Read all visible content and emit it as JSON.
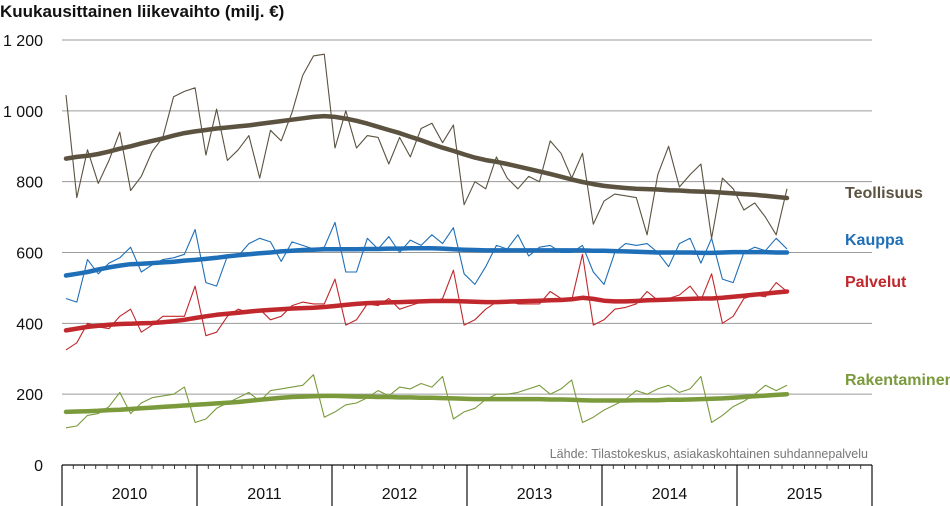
{
  "chart_data": {
    "type": "line",
    "title": "Kuukausittainen liikevaihto (milj. €)",
    "source": "Lähde: Tilastokeskus, asiakaskohtainen suhdannepalvelu",
    "ylim": [
      0,
      1200
    ],
    "yticks": [
      {
        "value": 0,
        "label": "0"
      },
      {
        "value": 200,
        "label": "200"
      },
      {
        "value": 400,
        "label": "400"
      },
      {
        "value": 600,
        "label": "600"
      },
      {
        "value": 800,
        "label": "800"
      },
      {
        "value": 1000,
        "label": "1 000"
      },
      {
        "value": 1200,
        "label": "1 200"
      }
    ],
    "grid": true,
    "x_unit": "month index from January 2010",
    "years": [
      "2010",
      "2011",
      "2012",
      "2013",
      "2014",
      "2015"
    ],
    "year_span_months": [
      12,
      12,
      12,
      12,
      12,
      12
    ],
    "series": [
      {
        "name": "Teollisuus",
        "color": "#5b5240",
        "raw": [
          1045,
          755,
          890,
          795,
          860,
          940,
          775,
          815,
          885,
          925,
          1040,
          1055,
          1065,
          875,
          1005,
          860,
          890,
          930,
          810,
          945,
          915,
          995,
          1100,
          1155,
          1160,
          895,
          1000,
          895,
          930,
          925,
          850,
          925,
          870,
          950,
          965,
          910,
          960,
          735,
          800,
          780,
          870,
          810,
          780,
          815,
          800,
          915,
          880,
          810,
          880,
          680,
          745,
          765,
          760,
          755,
          650,
          820,
          900,
          785,
          820,
          850,
          640,
          810,
          780,
          720,
          740,
          700,
          650,
          780
        ],
        "trend": [
          865,
          870,
          873,
          878,
          885,
          893,
          900,
          908,
          915,
          922,
          930,
          937,
          942,
          946,
          950,
          953,
          956,
          959,
          963,
          967,
          971,
          975,
          979,
          983,
          985,
          983,
          978,
          972,
          964,
          955,
          946,
          937,
          927,
          917,
          906,
          896,
          887,
          877,
          868,
          861,
          856,
          850,
          843,
          836,
          829,
          822,
          814,
          806,
          799,
          793,
          788,
          785,
          782,
          780,
          779,
          778,
          776,
          775,
          773,
          772,
          771,
          769,
          767,
          765,
          763,
          760,
          757,
          754
        ]
      },
      {
        "name": "Kauppa",
        "color": "#1f6fb8",
        "raw": [
          470,
          460,
          580,
          540,
          570,
          585,
          615,
          545,
          565,
          580,
          585,
          595,
          665,
          515,
          505,
          590,
          590,
          625,
          640,
          630,
          575,
          630,
          620,
          610,
          615,
          685,
          545,
          545,
          640,
          610,
          645,
          600,
          635,
          620,
          650,
          625,
          670,
          540,
          510,
          560,
          620,
          610,
          650,
          590,
          615,
          620,
          600,
          600,
          620,
          545,
          510,
          600,
          625,
          620,
          625,
          600,
          560,
          625,
          640,
          570,
          640,
          525,
          515,
          600,
          615,
          605,
          640,
          610
        ],
        "trend": [
          535,
          540,
          545,
          552,
          558,
          563,
          567,
          568,
          570,
          572,
          574,
          577,
          579,
          582,
          585,
          589,
          592,
          595,
          598,
          600,
          603,
          605,
          607,
          608,
          609,
          609,
          609,
          609,
          610,
          610,
          611,
          611,
          612,
          612,
          612,
          611,
          609,
          608,
          607,
          606,
          606,
          606,
          606,
          606,
          606,
          606,
          606,
          606,
          606,
          605,
          605,
          604,
          603,
          602,
          601,
          600,
          600,
          600,
          600,
          599,
          599,
          600,
          601,
          601,
          601,
          601,
          600,
          600
        ]
      },
      {
        "name": "Palvelut",
        "color": "#c0282d",
        "raw": [
          325,
          345,
          400,
          390,
          385,
          420,
          440,
          375,
          395,
          420,
          420,
          420,
          505,
          365,
          375,
          420,
          440,
          430,
          440,
          410,
          420,
          450,
          460,
          455,
          455,
          525,
          395,
          410,
          455,
          450,
          470,
          440,
          450,
          460,
          460,
          470,
          550,
          395,
          410,
          440,
          460,
          465,
          455,
          455,
          455,
          490,
          470,
          465,
          595,
          395,
          410,
          440,
          445,
          455,
          490,
          465,
          470,
          480,
          505,
          465,
          540,
          400,
          420,
          470,
          480,
          475,
          515,
          490
        ],
        "trend": [
          380,
          385,
          390,
          393,
          396,
          398,
          399,
          400,
          401,
          403,
          406,
          410,
          415,
          420,
          424,
          427,
          430,
          433,
          436,
          438,
          440,
          442,
          443,
          444,
          446,
          449,
          452,
          455,
          457,
          458,
          459,
          460,
          461,
          462,
          463,
          463,
          463,
          462,
          461,
          460,
          460,
          461,
          462,
          463,
          464,
          465,
          466,
          468,
          472,
          469,
          464,
          462,
          462,
          463,
          465,
          466,
          467,
          468,
          469,
          470,
          470,
          472,
          475,
          478,
          481,
          484,
          487,
          490
        ]
      },
      {
        "name": "Rakentaminen",
        "color": "#7a9a3c",
        "raw": [
          105,
          110,
          140,
          145,
          165,
          205,
          145,
          175,
          190,
          195,
          200,
          220,
          120,
          130,
          160,
          175,
          190,
          205,
          180,
          210,
          215,
          220,
          225,
          255,
          135,
          150,
          170,
          175,
          190,
          210,
          195,
          220,
          215,
          230,
          220,
          250,
          130,
          150,
          160,
          185,
          200,
          200,
          205,
          215,
          225,
          200,
          215,
          240,
          120,
          135,
          155,
          170,
          185,
          210,
          200,
          215,
          225,
          205,
          215,
          250,
          120,
          140,
          165,
          180,
          200,
          225,
          210,
          225
        ],
        "trend": [
          150,
          151,
          152,
          153,
          155,
          156,
          158,
          160,
          162,
          164,
          166,
          168,
          170,
          172,
          174,
          176,
          178,
          181,
          184,
          187,
          190,
          192,
          193,
          194,
          195,
          195,
          194,
          193,
          193,
          192,
          192,
          191,
          191,
          190,
          190,
          189,
          188,
          187,
          186,
          186,
          186,
          186,
          186,
          186,
          186,
          185,
          185,
          184,
          183,
          182,
          182,
          182,
          182,
          183,
          183,
          183,
          184,
          184,
          185,
          186,
          187,
          188,
          190,
          192,
          194,
          196,
          198,
          200
        ]
      }
    ]
  }
}
